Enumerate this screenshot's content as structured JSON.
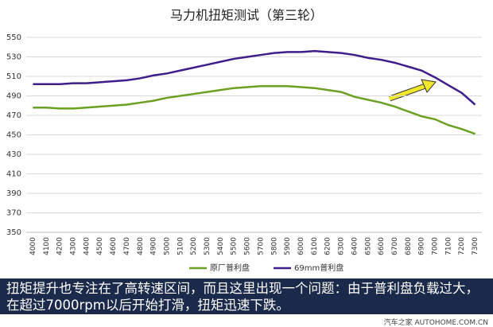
{
  "chart_data": {
    "type": "line",
    "title": "马力机扭矩测试（第三轮）",
    "categories": [
      "4000",
      "4100",
      "4200",
      "4300",
      "4400",
      "4500",
      "4600",
      "4700",
      "4800",
      "4900",
      "5000",
      "5100",
      "5200",
      "5300",
      "5400",
      "5500",
      "5600",
      "5700",
      "5800",
      "5900",
      "6000",
      "6100",
      "6200",
      "6300",
      "6400",
      "6500",
      "6600",
      "6700",
      "6800",
      "6900",
      "7000",
      "7100",
      "7200",
      "7300"
    ],
    "series": [
      {
        "name": "原厂普利盘",
        "color": "#6aa121",
        "values": [
          478,
          478,
          477,
          477,
          478,
          479,
          480,
          481,
          483,
          485,
          488,
          490,
          492,
          494,
          496,
          498,
          499,
          500,
          500,
          500,
          499,
          498,
          496,
          494,
          489,
          486,
          483,
          479,
          474,
          469,
          466,
          460,
          456,
          451
        ]
      },
      {
        "name": "69mm普利盘",
        "color": "#3f1e8c",
        "values": [
          502,
          502,
          502,
          503,
          503,
          504,
          505,
          506,
          508,
          511,
          513,
          516,
          519,
          522,
          525,
          528,
          530,
          532,
          534,
          535,
          535,
          536,
          535,
          534,
          532,
          529,
          527,
          524,
          520,
          516,
          509,
          501,
          493,
          481
        ]
      }
    ],
    "ylim": [
      350,
      550
    ],
    "yticks": [
      350,
      370,
      390,
      410,
      430,
      450,
      470,
      490,
      510,
      530,
      550
    ],
    "grid": true,
    "legend": "bottom"
  },
  "caption": "扭矩提升也专注在了高转速区间，而且这里出现一个问题：由于普利盘负载过大，在超过7000rpm以后开始打滑，扭矩迅速下跌。",
  "watermark": "汽车之家 AUTOHOME.COM.CN"
}
